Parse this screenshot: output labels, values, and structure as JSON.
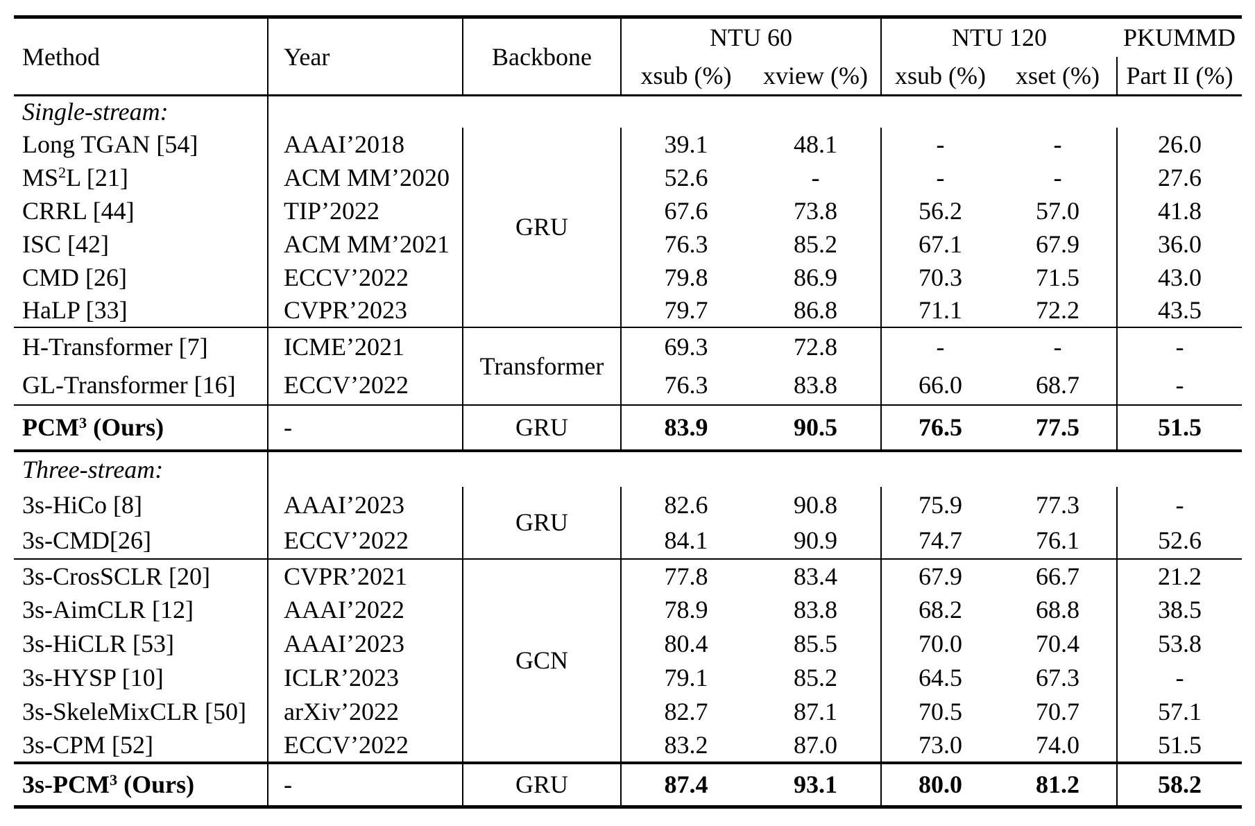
{
  "page": {
    "background": "#ffffff",
    "text_color": "#000000"
  },
  "table": {
    "columns": [
      "Method",
      "Year",
      "Backbone"
    ],
    "groups": [
      {
        "label": "NTU 60",
        "subcolumns": [
          "xsub (%)",
          "xview (%)"
        ]
      },
      {
        "label": "NTU 120",
        "subcolumns": [
          "xsub (%)",
          "xset (%)"
        ]
      },
      {
        "label": "PKUMMD",
        "subcolumns": [
          "Part II (%)"
        ]
      }
    ],
    "rows": [
      {
        "type": "section",
        "label": "Single-stream:",
        "rule_above": "header"
      },
      {
        "type": "data",
        "method": "Long TGAN [54]",
        "year": "AAAI’2018",
        "backbone": {
          "label": "GRU",
          "rowspan": 6
        },
        "values": [
          "39.1",
          "48.1",
          "-",
          "-",
          "26.0"
        ]
      },
      {
        "type": "data",
        "method": "MS^2^L [21]",
        "year": "ACM MM’2020",
        "values": [
          "52.6",
          "-",
          "-",
          "-",
          "27.6"
        ]
      },
      {
        "type": "data",
        "method": "CRRL [44]",
        "year": "TIP’2022",
        "values": [
          "67.6",
          "73.8",
          "56.2",
          "57.0",
          "41.8"
        ]
      },
      {
        "type": "data",
        "method": "ISC [42]",
        "year": "ACM MM’2021",
        "values": [
          "76.3",
          "85.2",
          "67.1",
          "67.9",
          "36.0"
        ]
      },
      {
        "type": "data",
        "method": "CMD [26]",
        "year": "ECCV’2022",
        "values": [
          "79.8",
          "86.9",
          "70.3",
          "71.5",
          "43.0"
        ]
      },
      {
        "type": "data",
        "method": "HaLP [33]",
        "year": "CVPR’2023",
        "values": [
          "79.7",
          "86.8",
          "71.1",
          "72.2",
          "43.5"
        ]
      },
      {
        "type": "data",
        "method": "H-Transformer [7]",
        "year": "ICME’2021",
        "backbone": {
          "label": "Transformer",
          "rowspan": 2
        },
        "values": [
          "69.3",
          "72.8",
          "-",
          "-",
          "-"
        ],
        "rule_above": "thin"
      },
      {
        "type": "data",
        "method": "GL-Transformer [16]",
        "year": "ECCV’2022",
        "values": [
          "76.3",
          "83.8",
          "66.0",
          "68.7",
          "-"
        ]
      },
      {
        "type": "data",
        "bold": true,
        "method": "PCM^3^ (Ours)",
        "year": "-",
        "backbone": {
          "label": "GRU",
          "rowspan": 1
        },
        "values": [
          "83.9",
          "90.5",
          "76.5",
          "77.5",
          "51.5"
        ],
        "rule_above": "thin"
      },
      {
        "type": "section",
        "label": "Three-stream:",
        "rule_above": "thick"
      },
      {
        "type": "data",
        "method": "3s-HiCo [8]",
        "year": "AAAI’2023",
        "backbone": {
          "label": "GRU",
          "rowspan": 2
        },
        "values": [
          "82.6",
          "90.8",
          "75.9",
          "77.3",
          "-"
        ]
      },
      {
        "type": "data",
        "method": "3s-CMD[26]",
        "year": "ECCV’2022",
        "values": [
          "84.1",
          "90.9",
          "74.7",
          "76.1",
          "52.6"
        ]
      },
      {
        "type": "data",
        "method": "3s-CrosSCLR [20]",
        "year": "CVPR’2021",
        "backbone": {
          "label": "GCN",
          "rowspan": 6
        },
        "values": [
          "77.8",
          "83.4",
          "67.9",
          "66.7",
          "21.2"
        ],
        "rule_above": "thin"
      },
      {
        "type": "data",
        "method": "3s-AimCLR [12]",
        "year": "AAAI’2022",
        "values": [
          "78.9",
          "83.8",
          "68.2",
          "68.8",
          "38.5"
        ]
      },
      {
        "type": "data",
        "method": "3s-HiCLR [53]",
        "year": "AAAI’2023",
        "values": [
          "80.4",
          "85.5",
          "70.0",
          "70.4",
          "53.8"
        ]
      },
      {
        "type": "data",
        "method": "3s-HYSP [10]",
        "year": "ICLR’2023",
        "values": [
          "79.1",
          "85.2",
          "64.5",
          "67.3",
          "-"
        ]
      },
      {
        "type": "data",
        "method": "3s-SkeleMixCLR [50]",
        "year": "arXiv’2022",
        "values": [
          "82.7",
          "87.1",
          "70.5",
          "70.7",
          "57.1"
        ]
      },
      {
        "type": "data",
        "method": "3s-CPM [52]",
        "year": "ECCV’2022",
        "values": [
          "83.2",
          "87.0",
          "73.0",
          "74.0",
          "51.5"
        ]
      },
      {
        "type": "data",
        "bold": true,
        "method": "3s-PCM^3^ (Ours)",
        "year": "-",
        "backbone": {
          "label": "GRU",
          "rowspan": 1
        },
        "values": [
          "87.4",
          "93.1",
          "80.0",
          "81.2",
          "58.2"
        ],
        "rule_above": "thick"
      }
    ]
  }
}
